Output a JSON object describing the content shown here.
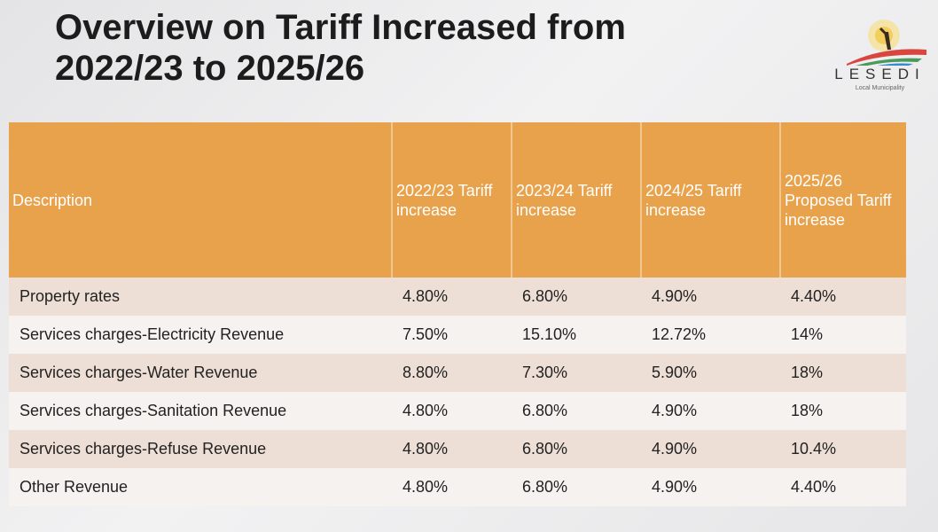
{
  "slide": {
    "title_line1": "Overview on Tariff Increased from",
    "title_line2": "2022/23 to 2025/26",
    "logo": {
      "name": "LESEDI",
      "subtitle": "Local Municipality"
    }
  },
  "table": {
    "headers": [
      "Description",
      "2022/23 Tariff increase",
      "2023/24 Tariff increase",
      "2024/25 Tariff increase",
      "2025/26 Proposed Tariff increase"
    ],
    "rows": [
      [
        "Property rates",
        "4.80%",
        "6.80%",
        "4.90%",
        "4.40%"
      ],
      [
        "Services charges-Electricity Revenue",
        "7.50%",
        "15.10%",
        "12.72%",
        "14%"
      ],
      [
        "Services charges-Water Revenue",
        "8.80%",
        "7.30%",
        "5.90%",
        "18%"
      ],
      [
        "Services charges-Sanitation Revenue",
        "4.80%",
        "6.80%",
        "4.90%",
        "18%"
      ],
      [
        "Services charges-Refuse Revenue",
        "4.80%",
        "6.80%",
        "4.90%",
        "10.4%"
      ],
      [
        "Other Revenue",
        "4.80%",
        "6.80%",
        "4.90%",
        "4.40%"
      ]
    ]
  },
  "colors": {
    "header": "#e9a24c",
    "row_odd": "#eedfd6",
    "row_even": "#f6f2ef"
  }
}
